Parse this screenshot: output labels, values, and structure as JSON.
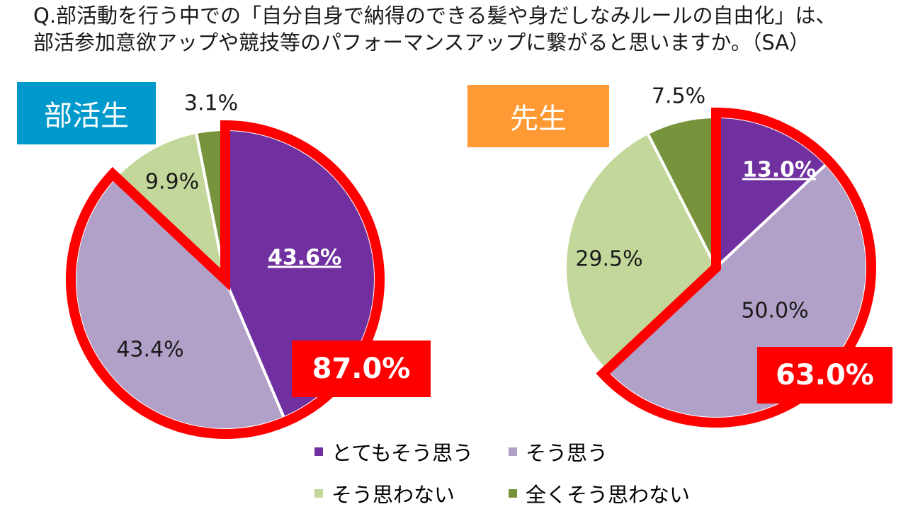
{
  "title": {
    "line1": "Q.部活動を行う中での「自分自身で納得のできる髪や身だしなみルールの自由化」は、",
    "line2": "部活参加意欲アップや競技等のパフォーマンスアップに繋がると思いますか。（SA）"
  },
  "colors": {
    "totally_agree": "#7030a0",
    "agree": "#b1a0c7",
    "disagree": "#c4d79b",
    "totally_disagree": "#77933c",
    "highlight": "#ff0000",
    "badge_students": "#0099cc",
    "badge_teachers": "#ff9933"
  },
  "legend": [
    {
      "label": "とてもそう思う",
      "color": "#7030a0"
    },
    {
      "label": "そう思う",
      "color": "#b1a0c7"
    },
    {
      "label": "そう思わない",
      "color": "#c4d79b"
    },
    {
      "label": "全くそう思わない",
      "color": "#77933c"
    }
  ],
  "chart_data": [
    {
      "type": "pie",
      "group_label": "部活生",
      "categories": [
        "とてもそう思う",
        "そう思う",
        "そう思わない",
        "全くそう思わない"
      ],
      "values": [
        43.6,
        43.4,
        9.9,
        3.1
      ],
      "value_labels": [
        "43.6%",
        "43.4%",
        "9.9%",
        "3.1%"
      ],
      "highlight_total": "87.0%",
      "highlight_categories": [
        "とてもそう思う",
        "そう思う"
      ]
    },
    {
      "type": "pie",
      "group_label": "先生",
      "categories": [
        "とてもそう思う",
        "そう思う",
        "そう思わない",
        "全くそう思わない"
      ],
      "values": [
        13.0,
        50.0,
        29.5,
        7.5
      ],
      "value_labels": [
        "13.0%",
        "50.0%",
        "29.5%",
        "7.5%"
      ],
      "highlight_total": "63.0%",
      "highlight_categories": [
        "とてもそう思う",
        "そう思う"
      ]
    }
  ]
}
